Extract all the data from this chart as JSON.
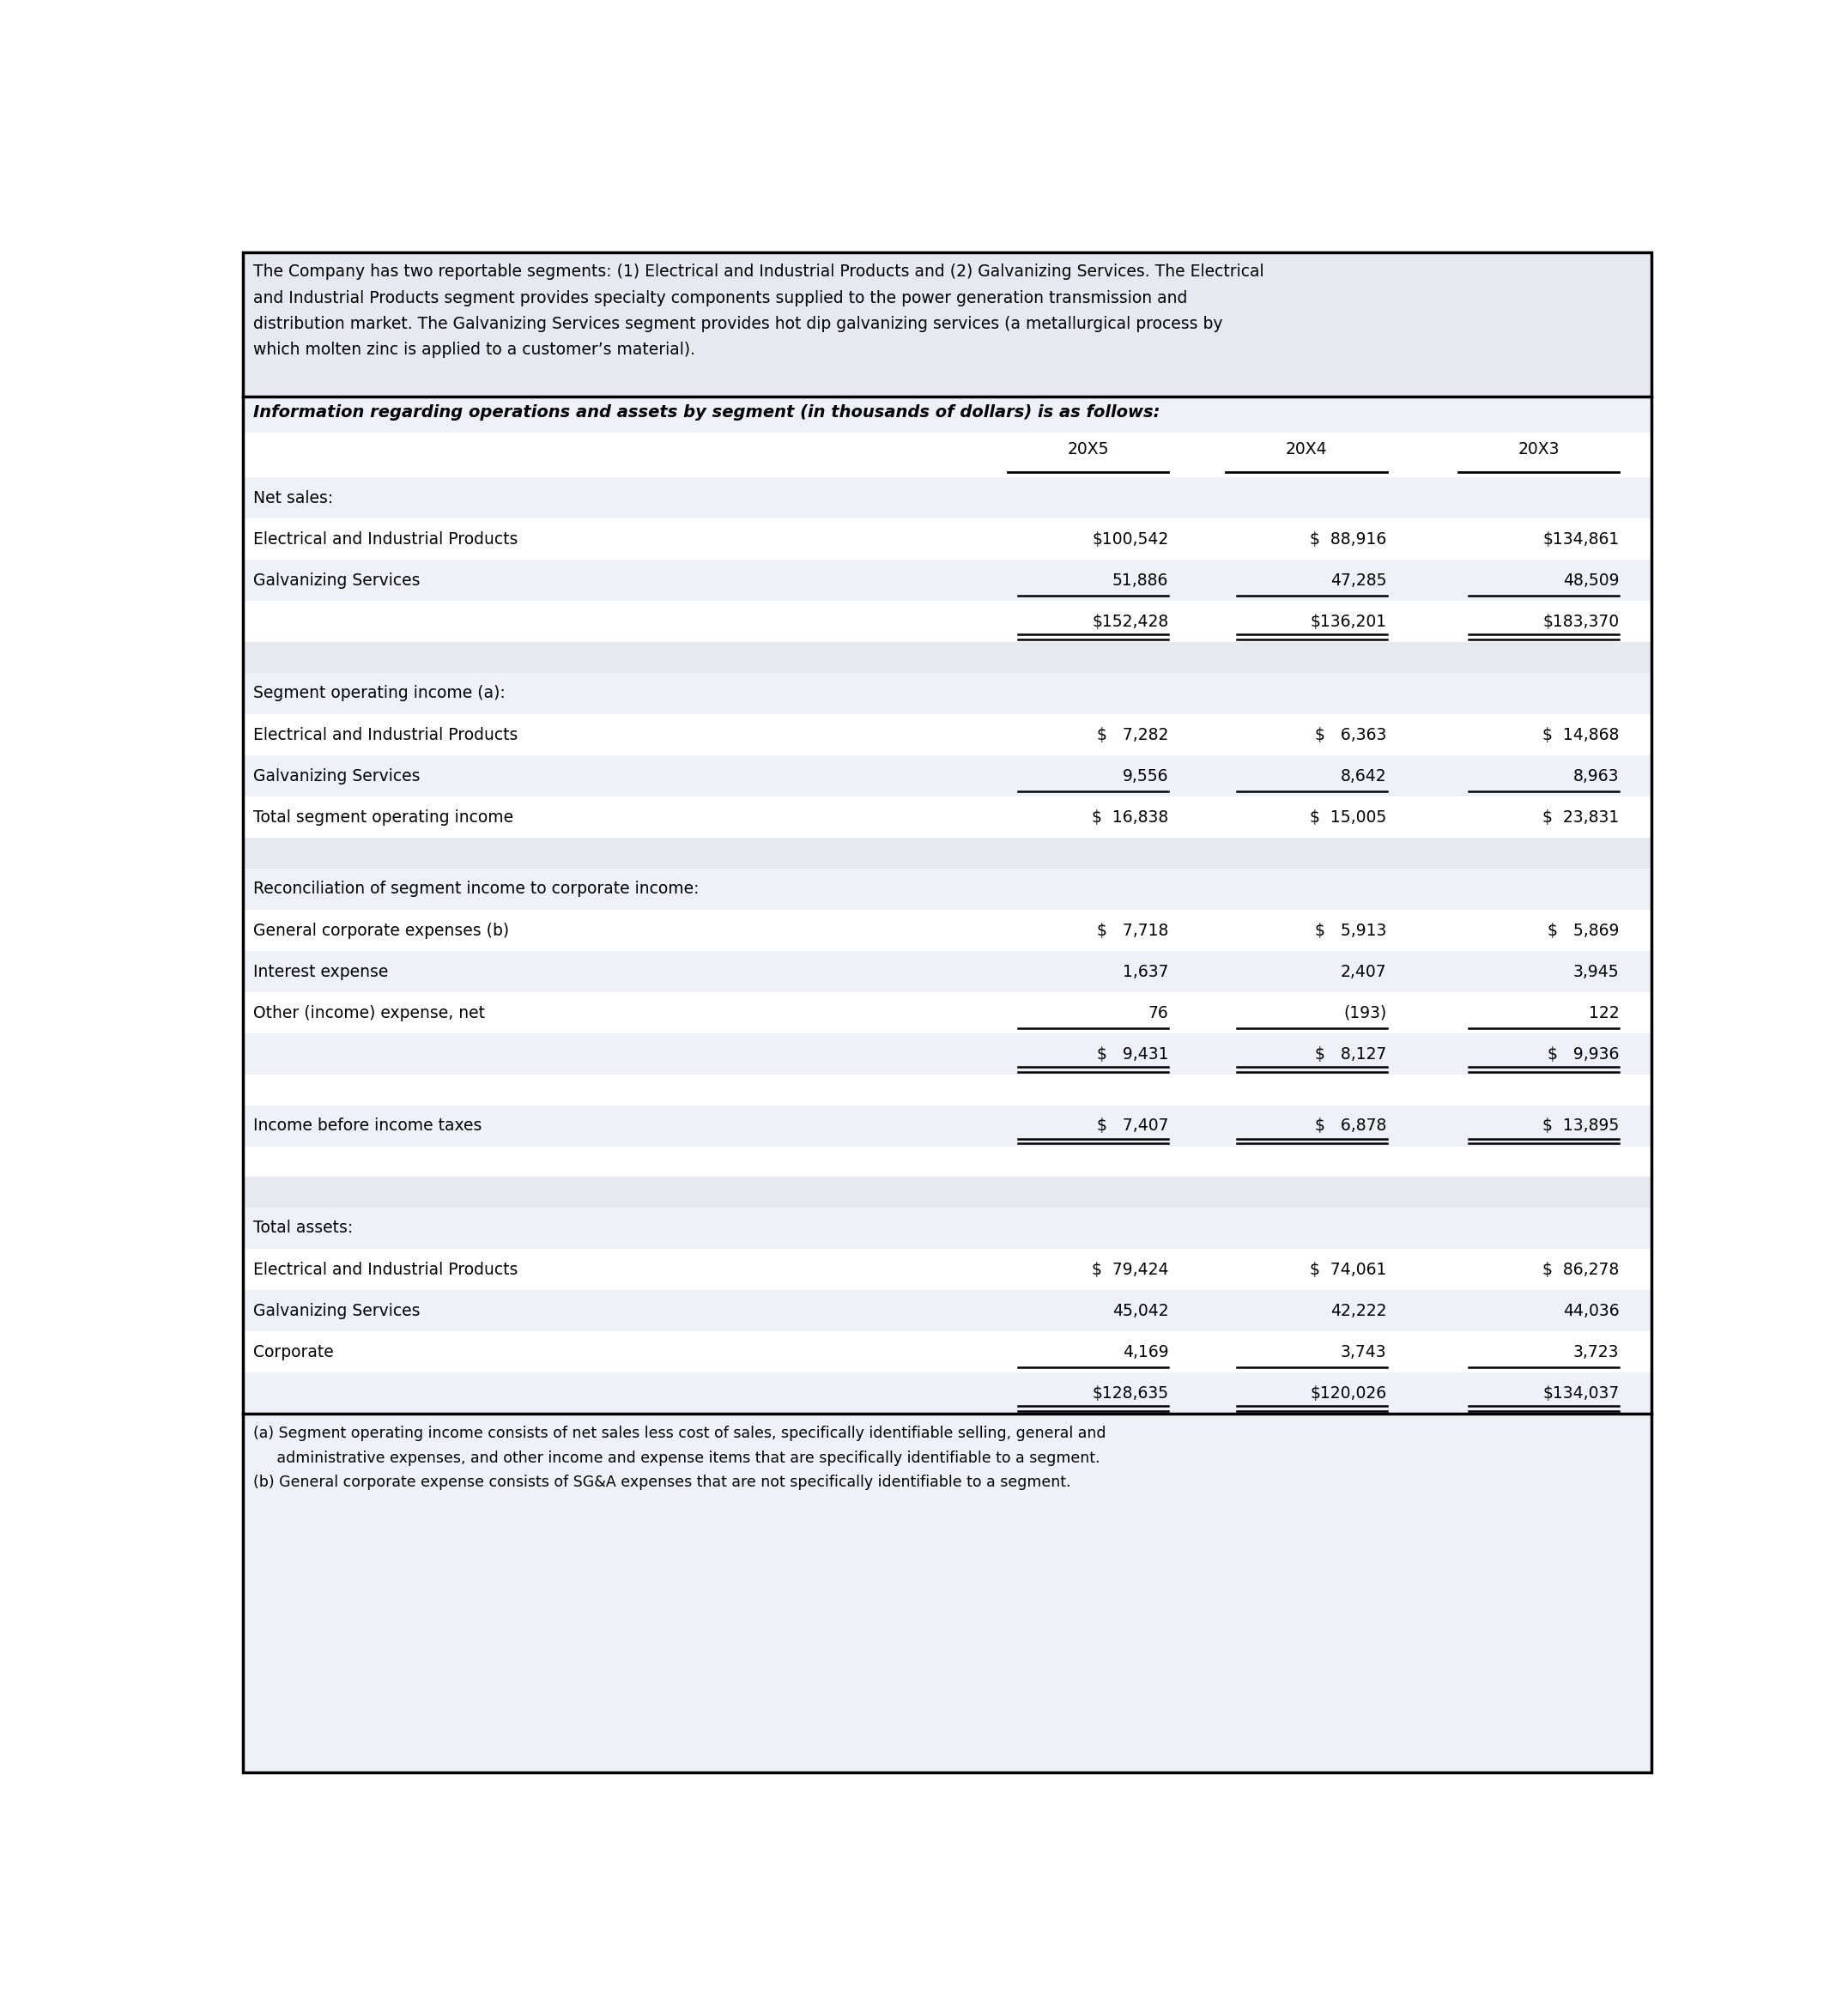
{
  "header_text": "The Company has two reportable segments: (1) Electrical and Industrial Products and (2) Galvanizing Services. The Electrical\nand Industrial Products segment provides specialty components supplied to the power generation transmission and\ndistribution market. The Galvanizing Services segment provides hot dip galvanizing services (a metallurgical process by\nwhich molten zinc is applied to a customer’s material).",
  "subtitle": "Information regarding operations and assets by segment (in thousands of dollars) is as follows:",
  "columns": [
    "20X5",
    "20X4",
    "20X3"
  ],
  "footnote_a": "(a) Segment operating income consists of net sales less cost of sales, specifically identifiable selling, general and\n     administrative expenses, and other income and expense items that are specifically identifiable to a segment.",
  "footnote_b": "(b) General corporate expense consists of SG&A expenses that are not specifically identifiable to a segment.",
  "rows": [
    {
      "label": "Net sales:",
      "values": [
        "",
        "",
        ""
      ],
      "bg": "#f0f0f8",
      "type": "section",
      "underline": []
    },
    {
      "label": "Electrical and Industrial Products",
      "values": [
        "$100,542",
        "$  88,916",
        "$134,861"
      ],
      "bg": "#ffffff",
      "type": "data",
      "underline": []
    },
    {
      "label": "Galvanizing Services",
      "values": [
        "51,886",
        "47,285",
        "48,509"
      ],
      "bg": "#f0f0f8",
      "type": "data",
      "underline": [
        0,
        1,
        2
      ]
    },
    {
      "label": "",
      "values": [
        "$152,428",
        "$136,201",
        "$183,370"
      ],
      "bg": "#ffffff",
      "type": "double_total",
      "underline": []
    },
    {
      "label": "",
      "values": [
        "",
        "",
        ""
      ],
      "bg": "#e8e8f0",
      "type": "spacer",
      "underline": []
    },
    {
      "label": "Segment operating income (a):",
      "values": [
        "",
        "",
        ""
      ],
      "bg": "#f0f0f8",
      "type": "section",
      "underline": []
    },
    {
      "label": "Electrical and Industrial Products",
      "values": [
        "$   7,282",
        "$   6,363",
        "$  14,868"
      ],
      "bg": "#ffffff",
      "type": "data",
      "underline": []
    },
    {
      "label": "Galvanizing Services",
      "values": [
        "9,556",
        "8,642",
        "8,963"
      ],
      "bg": "#f0f0f8",
      "type": "data",
      "underline": [
        0,
        1,
        2
      ]
    },
    {
      "label": "Total segment operating income",
      "values": [
        "$  16,838",
        "$  15,005",
        "$  23,831"
      ],
      "bg": "#ffffff",
      "type": "data",
      "underline": []
    },
    {
      "label": "",
      "values": [
        "",
        "",
        ""
      ],
      "bg": "#e8e8f0",
      "type": "spacer",
      "underline": []
    },
    {
      "label": "Reconciliation of segment income to corporate income:",
      "values": [
        "",
        "",
        ""
      ],
      "bg": "#f0f0f8",
      "type": "section",
      "underline": []
    },
    {
      "label": "General corporate expenses (b)",
      "values": [
        "$   7,718",
        "$   5,913",
        "$   5,869"
      ],
      "bg": "#ffffff",
      "type": "data",
      "underline": []
    },
    {
      "label": "Interest expense",
      "values": [
        "1,637",
        "2,407",
        "3,945"
      ],
      "bg": "#f0f0f8",
      "type": "data",
      "underline": []
    },
    {
      "label": "Other (income) expense, net",
      "values": [
        "76",
        "(193)",
        "122"
      ],
      "bg": "#ffffff",
      "type": "data",
      "underline": [
        0,
        1,
        2
      ]
    },
    {
      "label": "",
      "values": [
        "$   9,431",
        "$   8,127",
        "$   9,936"
      ],
      "bg": "#f0f0f8",
      "type": "double_total",
      "underline": []
    },
    {
      "label": "",
      "values": [
        "",
        "",
        ""
      ],
      "bg": "#ffffff",
      "type": "spacer",
      "underline": []
    },
    {
      "label": "Income before income taxes",
      "values": [
        "$   7,407",
        "$   6,878",
        "$  13,895"
      ],
      "bg": "#f0f0f8",
      "type": "double_total",
      "underline": []
    },
    {
      "label": "",
      "values": [
        "",
        "",
        ""
      ],
      "bg": "#ffffff",
      "type": "spacer",
      "underline": []
    },
    {
      "label": "",
      "values": [
        "",
        "",
        ""
      ],
      "bg": "#e8e8f0",
      "type": "spacer",
      "underline": []
    },
    {
      "label": "Total assets:",
      "values": [
        "",
        "",
        ""
      ],
      "bg": "#f0f0f8",
      "type": "section",
      "underline": []
    },
    {
      "label": "Electrical and Industrial Products",
      "values": [
        "$  79,424",
        "$  74,061",
        "$  86,278"
      ],
      "bg": "#ffffff",
      "type": "data",
      "underline": []
    },
    {
      "label": "Galvanizing Services",
      "values": [
        "45,042",
        "42,222",
        "44,036"
      ],
      "bg": "#f0f0f8",
      "type": "data",
      "underline": []
    },
    {
      "label": "Corporate",
      "values": [
        "4,169",
        "3,743",
        "3,723"
      ],
      "bg": "#ffffff",
      "type": "data",
      "underline": [
        0,
        1,
        2
      ]
    },
    {
      "label": "",
      "values": [
        "$128,635",
        "$120,026",
        "$134,037"
      ],
      "bg": "#f0f0f8",
      "type": "double_total",
      "underline": []
    }
  ]
}
